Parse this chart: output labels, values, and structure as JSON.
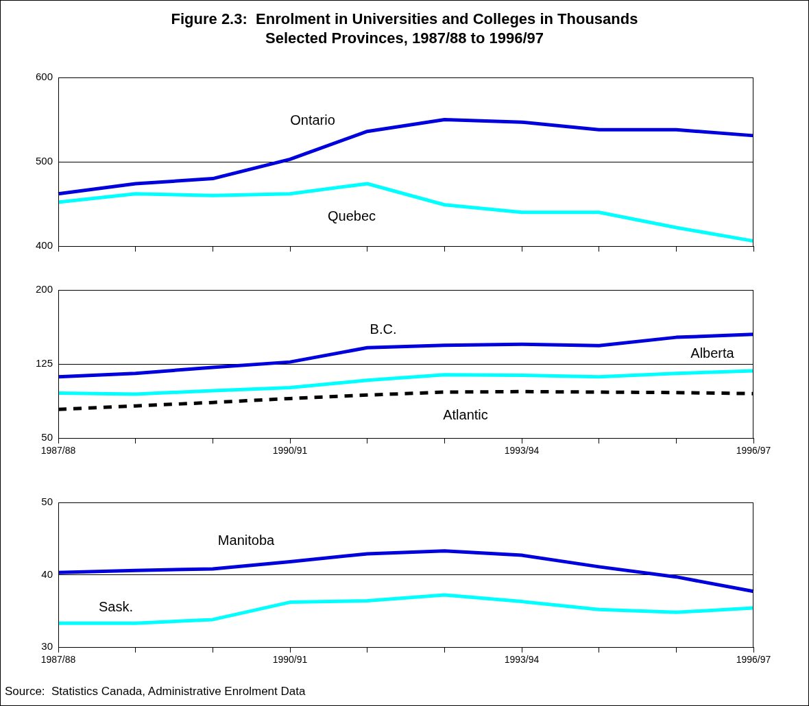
{
  "chart_data": [
    {
      "type": "line",
      "title": "Figure 2.3:  Enrolment in Universities and Colleges in Thousands",
      "subtitle": "Selected Provinces, 1987/88 to 1996/97",
      "categories": [
        "1987/88",
        null,
        null,
        "1990/91",
        null,
        null,
        "1993/94",
        null,
        null,
        "1996/97"
      ],
      "ylim": [
        400,
        600
      ],
      "yticks": [
        400,
        500,
        600
      ],
      "grid": "y",
      "tick_labels": "y",
      "line_style": "solid",
      "marker": "none",
      "series": [
        {
          "name": "Ontario",
          "color": "#0000dd",
          "values": [
            462,
            474,
            480,
            503,
            536,
            550,
            547,
            538,
            538,
            531
          ]
        },
        {
          "name": "Quebec",
          "color": "#00ffff",
          "values": [
            452,
            462,
            460,
            462,
            474,
            449,
            440,
            440,
            422,
            406
          ]
        }
      ]
    },
    {
      "type": "line",
      "categories": [
        "1987/88",
        null,
        null,
        "1990/91",
        null,
        null,
        "1993/94",
        null,
        null,
        "1996/97"
      ],
      "ylim": [
        50,
        200
      ],
      "yticks": [
        50,
        125,
        200
      ],
      "grid": "y",
      "marker": "none",
      "series": [
        {
          "name": "B.C.",
          "color": "#0000dd",
          "values": [
            112,
            115.5,
            121.5,
            127,
            141.5,
            144,
            145,
            143.5,
            152,
            155
          ],
          "line_style": "solid"
        },
        {
          "name": "Alberta",
          "color": "#00ffff",
          "values": [
            95.5,
            94.5,
            98,
            101,
            108.5,
            114,
            113.5,
            112,
            115.5,
            118
          ],
          "line_style": "solid"
        },
        {
          "name": "Atlantic",
          "color": "#000000",
          "values": [
            79,
            82.5,
            86,
            90,
            93.5,
            96.5,
            97,
            96.5,
            96,
            95
          ],
          "line_style": "dashed"
        }
      ]
    },
    {
      "type": "line",
      "categories": [
        "1987/88",
        null,
        null,
        "1990/91",
        null,
        null,
        "1993/94",
        null,
        null,
        "1996/97"
      ],
      "ylim": [
        30,
        50
      ],
      "yticks": [
        30,
        40,
        50
      ],
      "grid": "y",
      "line_style": "solid",
      "marker": "none",
      "annotations": [
        "Source:  Statistics Canada, Administrative Enrolment Data"
      ],
      "series": [
        {
          "name": "Manitoba",
          "color": "#0000dd",
          "values": [
            40.3,
            40.6,
            40.8,
            41.8,
            42.9,
            43.3,
            42.7,
            41.1,
            39.7,
            37.7
          ]
        },
        {
          "name": "Sask.",
          "color": "#00ffff",
          "values": [
            33.3,
            33.3,
            33.8,
            36.2,
            36.4,
            37.2,
            36.3,
            35.2,
            34.8,
            35.4
          ]
        }
      ]
    }
  ]
}
